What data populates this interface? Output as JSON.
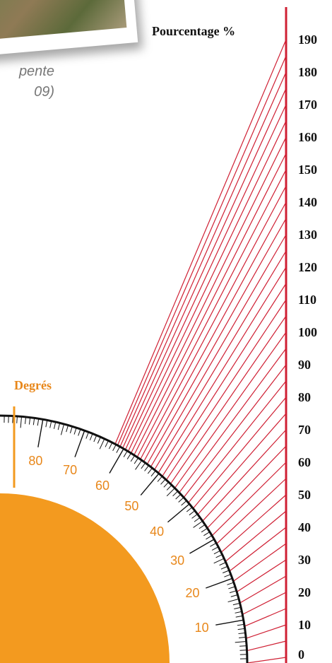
{
  "caption": {
    "line1": "pente",
    "line2": "09)"
  },
  "percent_scale": {
    "title": "Pourcentage %",
    "ticks": [
      "190",
      "180",
      "170",
      "160",
      "150",
      "140",
      "130",
      "120",
      "110",
      "100",
      "90",
      "80",
      "70",
      "60",
      "50",
      "40",
      "30",
      "20",
      "10",
      "0"
    ]
  },
  "degree_scale": {
    "title": "Degrés",
    "labels": [
      "80",
      "70",
      "60",
      "50",
      "40",
      "30",
      "20",
      "10"
    ]
  },
  "colors": {
    "accent_red": "#cf1f33",
    "orange": "#f39a1f",
    "label_orange": "#e8871a",
    "ink": "#111111"
  }
}
